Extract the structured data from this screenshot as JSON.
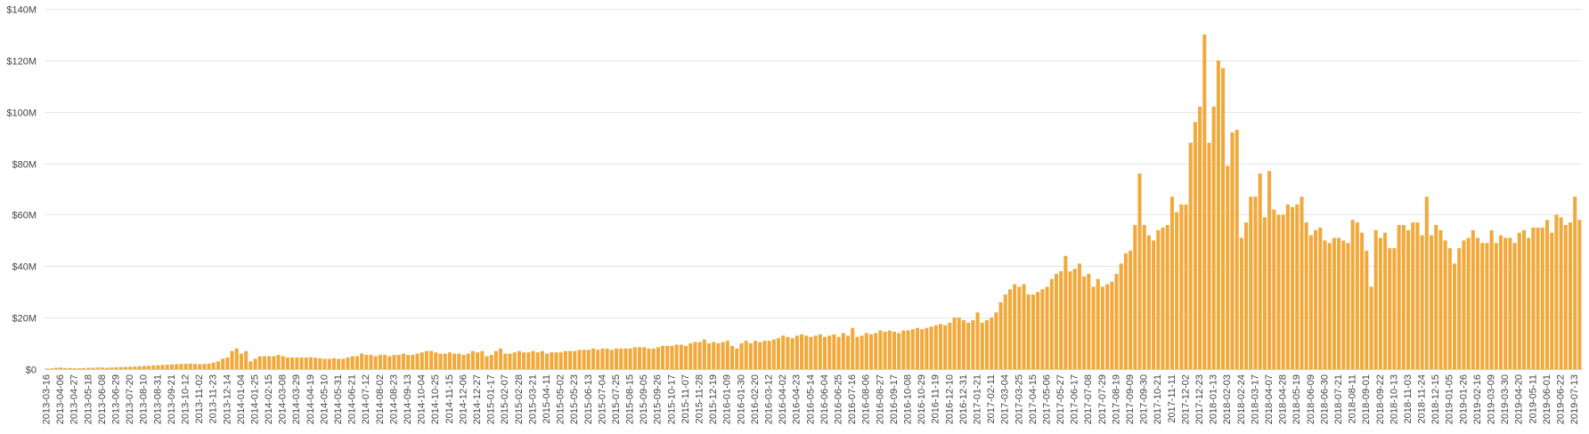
{
  "colors": {
    "bar": "#f2a93b",
    "grid": "#e6e6e6",
    "text": "#444444",
    "background": "#ffffff"
  },
  "chart_data": {
    "type": "bar",
    "title": "",
    "xlabel": "",
    "ylabel": "",
    "ylim": [
      0,
      140
    ],
    "y_unit": "$M",
    "yticks": [
      0,
      20,
      40,
      60,
      80,
      100,
      120,
      140
    ],
    "ytick_labels": [
      "$0",
      "$20M",
      "$40M",
      "$60M",
      "$80M",
      "$100M",
      "$120M",
      "$140M"
    ],
    "grid": true,
    "legend": "none",
    "start_date": "2013-03-16",
    "interval_days": 7,
    "tick_every": 3,
    "tick_labels": [
      "2013-03-16",
      "2013-04-06",
      "2013-04-27",
      "2013-05-18",
      "2013-06-08",
      "2013-06-29",
      "2013-07-20",
      "2013-08-10",
      "2013-08-31",
      "2013-09-21",
      "2013-10-12",
      "2013-11-02",
      "2013-11-23",
      "2013-12-14",
      "2014-01-04",
      "2014-01-25",
      "2014-02-15",
      "2014-03-08",
      "2014-03-29",
      "2014-04-19",
      "2014-05-10",
      "2014-05-31",
      "2014-06-21",
      "2014-07-12",
      "2014-08-02",
      "2014-08-23",
      "2014-09-13",
      "2014-10-04",
      "2014-10-25",
      "2014-11-15",
      "2014-12-06",
      "2014-12-27",
      "2015-01-17",
      "2015-02-07",
      "2015-02-28",
      "2015-03-21",
      "2015-04-11",
      "2015-05-02",
      "2015-05-23",
      "2015-06-13",
      "2015-07-04",
      "2015-07-25",
      "2015-08-15",
      "2015-09-05",
      "2015-09-26",
      "2015-10-17",
      "2015-11-07",
      "2015-11-28",
      "2015-12-19",
      "2016-01-09",
      "2016-01-30",
      "2016-02-20",
      "2016-03-12",
      "2016-04-02",
      "2016-04-23",
      "2016-05-14",
      "2016-06-04",
      "2016-06-25",
      "2016-07-16",
      "2016-08-06",
      "2016-08-27",
      "2016-09-17",
      "2016-10-08",
      "2016-10-29",
      "2016-11-19",
      "2016-12-10",
      "2016-12-31",
      "2017-01-21",
      "2017-02-11",
      "2017-03-04",
      "2017-03-25",
      "2017-04-15",
      "2017-05-06",
      "2017-05-27",
      "2017-06-17",
      "2017-07-08",
      "2017-07-29",
      "2017-08-19",
      "2017-09-09",
      "2017-09-30",
      "2017-10-21",
      "2017-11-11",
      "2017-12-02",
      "2017-12-23",
      "2018-01-13",
      "2018-02-03",
      "2018-02-24",
      "2018-03-17",
      "2018-04-07",
      "2018-04-28",
      "2018-05-19",
      "2018-06-09",
      "2018-06-30",
      "2018-07-21",
      "2018-08-11",
      "2018-09-01",
      "2018-09-22",
      "2018-10-13",
      "2018-11-03",
      "2018-11-24",
      "2018-12-15",
      "2019-01-05",
      "2019-01-26",
      "2019-02-16",
      "2019-03-09",
      "2019-03-30",
      "2019-04-20",
      "2019-05-11",
      "2019-06-01",
      "2019-06-22",
      "2019-07-13"
    ],
    "values": [
      0.2,
      0.3,
      0.5,
      0.6,
      0.4,
      0.4,
      0.3,
      0.3,
      0.4,
      0.5,
      0.5,
      0.6,
      0.6,
      0.5,
      0.6,
      0.7,
      0.8,
      0.8,
      0.9,
      1.0,
      1.1,
      1.2,
      1.3,
      1.4,
      1.5,
      1.6,
      1.7,
      1.8,
      1.9,
      2.0,
      2.0,
      2.1,
      2.0,
      1.9,
      2.0,
      2.1,
      2.5,
      3.0,
      4.0,
      4.5,
      7.0,
      8.0,
      6.0,
      7.0,
      3.0,
      4.0,
      5.0,
      5.0,
      5.0,
      5.0,
      5.5,
      5.0,
      4.5,
      4.5,
      4.5,
      4.5,
      4.5,
      4.6,
      4.4,
      4.2,
      4.0,
      4.0,
      4.2,
      4.0,
      4.0,
      4.5,
      5.0,
      5.0,
      6.0,
      5.5,
      5.5,
      5.0,
      5.5,
      5.5,
      5.0,
      5.5,
      5.5,
      6.0,
      5.5,
      5.5,
      6.0,
      6.5,
      7.0,
      7.0,
      6.5,
      6.0,
      6.0,
      6.5,
      6.0,
      6.0,
      5.5,
      6.0,
      7.0,
      6.5,
      7.0,
      5.0,
      5.5,
      7.0,
      8.0,
      6.0,
      6.0,
      6.5,
      7.0,
      6.5,
      6.5,
      7.0,
      6.5,
      7.0,
      6.0,
      6.5,
      6.5,
      6.5,
      7.0,
      7.0,
      7.0,
      7.5,
      7.5,
      7.5,
      8.0,
      7.5,
      8.0,
      8.0,
      7.5,
      8.0,
      8.0,
      8.0,
      8.0,
      8.5,
      8.5,
      8.5,
      8.0,
      8.0,
      8.5,
      9.0,
      9.0,
      9.0,
      9.5,
      9.5,
      9.0,
      10.0,
      10.5,
      10.5,
      11.5,
      10.0,
      10.5,
      10.0,
      10.5,
      11.0,
      9.0,
      8.0,
      10.0,
      11.0,
      10.0,
      11.0,
      10.5,
      11.0,
      11.0,
      11.5,
      12.0,
      13.0,
      12.5,
      12.0,
      13.0,
      13.5,
      13.0,
      12.5,
      13.0,
      13.5,
      12.5,
      13.0,
      13.5,
      12.5,
      14.0,
      13.0,
      16.0,
      12.5,
      13.0,
      14.0,
      13.5,
      14.0,
      15.0,
      14.5,
      15.0,
      14.5,
      14.0,
      15.0,
      15.0,
      15.5,
      16.0,
      15.5,
      16.0,
      16.5,
      17.0,
      17.5,
      17.0,
      18.0,
      20.0,
      20.0,
      19.0,
      18.0,
      19.0,
      22.0,
      18.0,
      19.0,
      20.0,
      22.0,
      26.0,
      29.0,
      31.0,
      33.0,
      32.0,
      33.0,
      29.0,
      29.0,
      30.0,
      31.0,
      32.0,
      35.0,
      37.0,
      38.0,
      44.0,
      38.0,
      39.0,
      41.0,
      36.0,
      37.0,
      32.0,
      35.0,
      32.0,
      33.0,
      34.0,
      37.0,
      41.0,
      45.0,
      46.0,
      56.0,
      76.0,
      56.0,
      52.0,
      50.0,
      54.0,
      55.0,
      56.0,
      67.0,
      61.0,
      64.0,
      64.0,
      88.0,
      96.0,
      102.0,
      130.0,
      88.0,
      102.0,
      120.0,
      117.0,
      79.0,
      92.0,
      93.0,
      51.0,
      57.0,
      67.0,
      67.0,
      76.0,
      59.0,
      77.0,
      62.0,
      60.0,
      60.0,
      64.0,
      63.0,
      64.0,
      67.0,
      57.0,
      52.0,
      54.0,
      55.0,
      50.0,
      49.0,
      51.0,
      51.0,
      50.0,
      49.0,
      58.0,
      57.0,
      53.0,
      46.0,
      32.0,
      54.0,
      51.0,
      53.0,
      47.0,
      47.0,
      56.0,
      56.0,
      54.0,
      57.0,
      57.0,
      52.0,
      67.0,
      52.0,
      56.0,
      54.0,
      50.0,
      47.0,
      41.0,
      47.0,
      50.0,
      51.0,
      54.0,
      51.0,
      49.0,
      49.0,
      54.0,
      49.0,
      52.0,
      51.0,
      51.0,
      49.0,
      53.0,
      54.0,
      51.0,
      55.0,
      55.0,
      55.0,
      58.0,
      53.0,
      60.0,
      59.0,
      56.0,
      57.0,
      67.0,
      58.0
    ]
  }
}
